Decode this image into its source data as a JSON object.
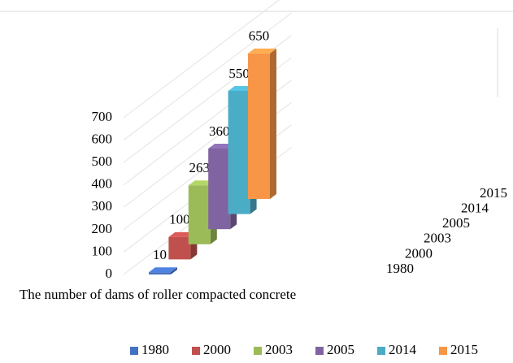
{
  "chart_data": {
    "type": "bar",
    "categories": [
      "The number of dams of roller compacted concrete"
    ],
    "series": [
      {
        "name": "1980",
        "color": "#4472c4",
        "values": [
          10
        ]
      },
      {
        "name": "2000",
        "color": "#c0504d",
        "values": [
          100
        ]
      },
      {
        "name": "2003",
        "color": "#9bbb59",
        "values": [
          263
        ]
      },
      {
        "name": "2005",
        "color": "#8064a2",
        "values": [
          360
        ]
      },
      {
        "name": "2014",
        "color": "#4bacc6",
        "values": [
          550
        ]
      },
      {
        "name": "2015",
        "color": "#f79646",
        "values": [
          650
        ]
      }
    ],
    "ylim": [
      0,
      700
    ],
    "yticks": [
      0,
      100,
      200,
      300,
      400,
      500,
      600,
      700
    ],
    "grid": true,
    "legend": "bottom"
  }
}
